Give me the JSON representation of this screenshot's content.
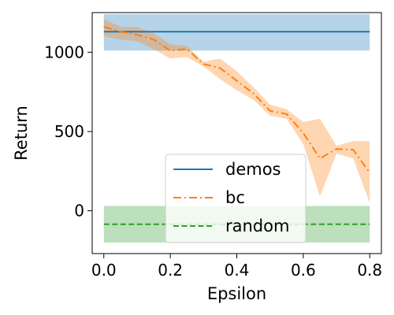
{
  "chart_data": {
    "type": "line",
    "title": "",
    "xlabel": "Epsilon",
    "ylabel": "Return",
    "xlim": [
      -0.035,
      0.835
    ],
    "ylim": [
      -270,
      1250
    ],
    "xticks": [
      0.0,
      0.2,
      0.4,
      0.6,
      0.8
    ],
    "xtick_labels": [
      "0.0",
      "0.2",
      "0.4",
      "0.6",
      "0.8"
    ],
    "yticks": [
      0,
      500,
      1000
    ],
    "ytick_labels": [
      "0",
      "500",
      "1000"
    ],
    "grid": false,
    "legend_placement": "lower-center",
    "series": [
      {
        "name": "demos",
        "style": "solid",
        "color": "#1f77b4",
        "band_color": "#1f77b4",
        "x": [
          0.0,
          0.8
        ],
        "y": [
          1130,
          1130
        ],
        "band_low": [
          1010,
          1010
        ],
        "band_high": [
          1240,
          1240
        ]
      },
      {
        "name": "bc",
        "style": "dashdot",
        "color": "#ff7f0e",
        "band_color": "#ff7f0e",
        "x": [
          0.0,
          0.05,
          0.1,
          0.15,
          0.2,
          0.25,
          0.3,
          0.35,
          0.4,
          0.45,
          0.5,
          0.55,
          0.6,
          0.65,
          0.7,
          0.75,
          0.8
        ],
        "y": [
          1160,
          1130,
          1110,
          1080,
          1010,
          1020,
          925,
          900,
          820,
          740,
          630,
          610,
          490,
          330,
          390,
          385,
          240
        ],
        "band_low": [
          1100,
          1080,
          1070,
          1020,
          960,
          970,
          910,
          830,
          760,
          700,
          600,
          580,
          420,
          90,
          360,
          330,
          50
        ],
        "band_high": [
          1210,
          1160,
          1160,
          1120,
          1050,
          1040,
          940,
          960,
          880,
          780,
          670,
          640,
          560,
          580,
          410,
          440,
          440
        ]
      },
      {
        "name": "random",
        "style": "dashed",
        "color": "#2ca02c",
        "band_color": "#2ca02c",
        "x": [
          0.0,
          0.8
        ],
        "y": [
          -85,
          -85
        ],
        "band_low": [
          -200,
          -200
        ],
        "band_high": [
          30,
          30
        ]
      }
    ]
  }
}
